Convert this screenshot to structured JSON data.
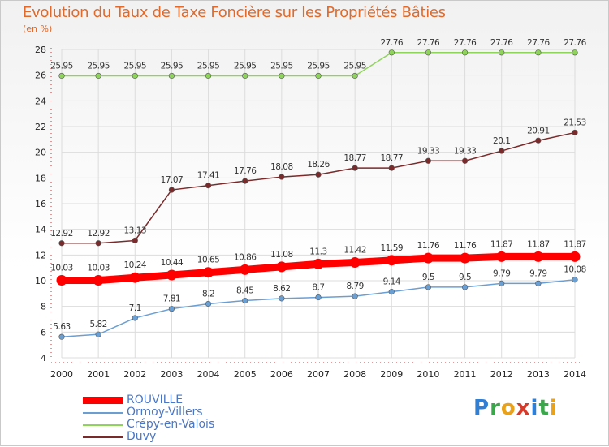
{
  "header": {
    "title": "Evolution du Taux de Taxe Foncière sur les Propriétés Bâties",
    "unit": "(en %)"
  },
  "chart_data": {
    "type": "line",
    "title": "Evolution du Taux de Taxe Foncière sur les Propriétés Bâties",
    "ylabel": "(en %)",
    "xlabel": "",
    "ylim": [
      4,
      28
    ],
    "yticks": [
      4,
      6,
      8,
      10,
      12,
      14,
      16,
      18,
      20,
      22,
      24,
      26,
      28
    ],
    "grid": true,
    "legend_position": "bottom-left",
    "x": [
      "2000",
      "2001",
      "2002",
      "2003",
      "2004",
      "2005",
      "2006",
      "2007",
      "2008",
      "2009",
      "2010",
      "2011",
      "2012",
      "2013",
      "2014"
    ],
    "series": [
      {
        "name": "ROUVILLE",
        "color": "#ff0000",
        "emphasis": true,
        "values": [
          10.03,
          10.03,
          10.24,
          10.44,
          10.65,
          10.86,
          11.08,
          11.3,
          11.42,
          11.59,
          11.76,
          11.76,
          11.87,
          11.87,
          11.87
        ],
        "labels": [
          "10.03",
          "10.03",
          "10.24",
          "10.44",
          "10.65",
          "10.86",
          "11.08",
          "11.3",
          "11.42",
          "11.59",
          "11.76",
          "11.76",
          "11.87",
          "11.87",
          "11.87"
        ]
      },
      {
        "name": "Ormoy-Villers",
        "color": "#6a9fd4",
        "values": [
          5.63,
          5.82,
          7.1,
          7.81,
          8.2,
          8.45,
          8.62,
          8.7,
          8.79,
          9.14,
          9.5,
          9.5,
          9.79,
          9.79,
          10.08
        ],
        "labels": [
          "5.63",
          "5.82",
          "7.1",
          "7.81",
          "8.2",
          "8.45",
          "8.62",
          "8.7",
          "8.79",
          "9.14",
          "9.5",
          "9.5",
          "9.79",
          "9.79",
          "10.08"
        ]
      },
      {
        "name": "Crépy-en-Valois",
        "color": "#8fd45a",
        "values": [
          25.95,
          25.95,
          25.95,
          25.95,
          25.95,
          25.95,
          25.95,
          25.95,
          25.95,
          27.76,
          27.76,
          27.76,
          27.76,
          27.76,
          27.76
        ],
        "labels": [
          "25.95",
          "25.95",
          "25.95",
          "25.95",
          "25.95",
          "25.95",
          "25.95",
          "25.95",
          "25.95",
          "27.76",
          "27.76",
          "27.76",
          "27.76",
          "27.76",
          "27.76"
        ]
      },
      {
        "name": "Duvy",
        "color": "#7a2a2a",
        "values": [
          12.92,
          12.92,
          13.13,
          17.07,
          17.41,
          17.76,
          18.08,
          18.26,
          18.77,
          18.77,
          19.33,
          19.33,
          20.1,
          20.91,
          21.53
        ],
        "labels": [
          "12.92",
          "12.92",
          "13.13",
          "17.07",
          "17.41",
          "17.76",
          "18.08",
          "18.26",
          "18.77",
          "18.77",
          "19.33",
          "19.33",
          "20.1",
          "20.91",
          "21.53"
        ]
      }
    ]
  },
  "legend": {
    "items": [
      {
        "name": "ROUVILLE",
        "color": "#ff0000"
      },
      {
        "name": "Ormoy-Villers",
        "color": "#6a9fd4"
      },
      {
        "name": "Crépy-en-Valois",
        "color": "#8fd45a"
      },
      {
        "name": "Duvy",
        "color": "#7a2a2a"
      }
    ]
  },
  "logo": {
    "text": "Proxiti",
    "letter_colors": [
      "#2f7fd6",
      "#3aa84a",
      "#e8a21c",
      "#d63a2a",
      "#2f7fd6",
      "#3aa84a",
      "#e8a21c"
    ]
  }
}
